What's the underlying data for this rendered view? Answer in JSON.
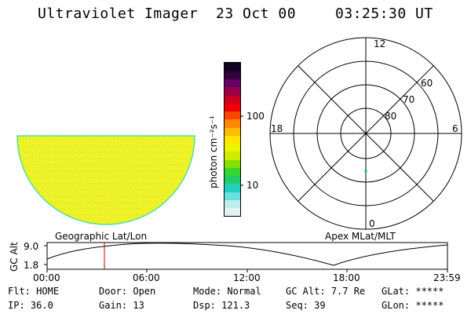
{
  "header": {
    "title": "Ultraviolet Imager",
    "date": "23 Oct 00",
    "time": "03:25:30 UT"
  },
  "colorbar": {
    "unit_label": "photon cm⁻²s⁻¹",
    "ticks": [
      "100",
      "10"
    ],
    "colors": [
      "#e6f2f2",
      "#c0ecec",
      "#66e0e0",
      "#22d0c0",
      "#22cc66",
      "#33d633",
      "#88e000",
      "#ccec00",
      "#eef400",
      "#ffe600",
      "#ffbb00",
      "#ff8800",
      "#ff4400",
      "#ee0000",
      "#cc0022",
      "#990044",
      "#660066",
      "#33003a",
      "#110022"
    ]
  },
  "image_panel": {
    "fill_color": "#eef22a",
    "edge_color": "#4ee0a0"
  },
  "polar": {
    "mlt_labels": [
      "12",
      "18",
      "6",
      "0"
    ],
    "lat_labels": [
      "60",
      "70",
      "80"
    ],
    "marker_color": "#22cc88"
  },
  "labels": {
    "left_projection": "Geographic Lat/Lon",
    "right_projection": "Apex MLat/MLT",
    "altitude_axis": "GC Alt",
    "altitude_ticks": [
      "9.0",
      "1.8"
    ],
    "time_ticks": [
      "00:00",
      "06:00",
      "12:00",
      "18:00",
      "23:59"
    ],
    "current_time_marker_color": "#cc0000"
  },
  "status": {
    "flt_label": "Flt:",
    "flt_value": "HOME",
    "door_label": "Door:",
    "door_value": "Open",
    "mode_label": "Mode:",
    "mode_value": "Normal",
    "gcalt_label": "GC Alt:",
    "gcalt_value": "7.7 Re",
    "glat_label": "GLat:",
    "glat_value": "*****",
    "ip_label": "IP:",
    "ip_value": "36.0",
    "gain_label": "Gain:",
    "gain_value": "13",
    "dsp_label": "Dsp:",
    "dsp_value": "121.3",
    "seq_label": "Seq:",
    "seq_value": "39",
    "glon_label": "GLon:",
    "glon_value": "*****"
  }
}
